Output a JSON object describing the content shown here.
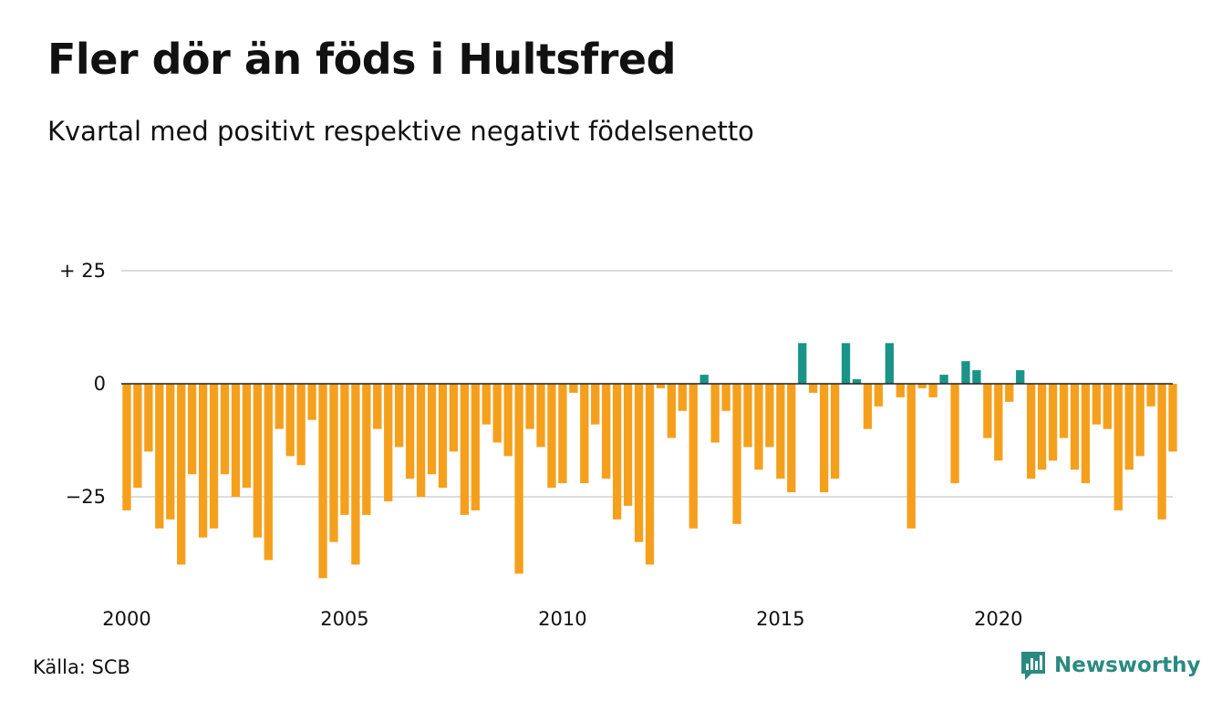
{
  "title": "Fler dör än föds i Hultsfred",
  "subtitle": "Kvartal med positivt respektive negativt födelsenetto",
  "source": "Källa: SCB",
  "brand": "Newsworthy",
  "colors": {
    "positive": "#1a9488",
    "negative": "#f5a01c",
    "grid": "#dddddd",
    "zero_line": "#222222",
    "brand": "#2a8a80"
  },
  "chart_data": {
    "type": "bar",
    "title": "Fler dör än föds i Hultsfred",
    "subtitle": "Kvartal med positivt respektive negativt födelsenetto",
    "x_start": 2000,
    "periods_per_year": 4,
    "ylim": [
      -45,
      32
    ],
    "y_ticks": [
      {
        "value": 25,
        "label": "+ 25"
      },
      {
        "value": 0,
        "label": "0"
      },
      {
        "value": -25,
        "label": "−25"
      }
    ],
    "x_ticks": [
      {
        "value": 2000,
        "label": "2000"
      },
      {
        "value": 2005,
        "label": "2005"
      },
      {
        "value": 2010,
        "label": "2010"
      },
      {
        "value": 2015,
        "label": "2015"
      },
      {
        "value": 2020,
        "label": "2020"
      }
    ],
    "grid": true,
    "values": [
      -28,
      -23,
      -15,
      -32,
      -30,
      -40,
      -20,
      -34,
      -32,
      -20,
      -25,
      -23,
      -34,
      -39,
      -10,
      -16,
      -18,
      -8,
      -43,
      -35,
      -29,
      -40,
      -29,
      -10,
      -26,
      -14,
      -21,
      -25,
      -20,
      -23,
      -15,
      -29,
      -28,
      -9,
      -13,
      -16,
      -42,
      -10,
      -14,
      -23,
      -22,
      -2,
      -22,
      -9,
      -21,
      -30,
      -27,
      -35,
      -40,
      -1,
      -12,
      -6,
      -32,
      2,
      -13,
      -6,
      -31,
      -14,
      -19,
      -14,
      -21,
      -24,
      9,
      -2,
      -24,
      -21,
      9,
      1,
      -10,
      -5,
      9,
      -3,
      -32,
      -1,
      -3,
      2,
      -22,
      5,
      3,
      -12,
      -17,
      -4,
      3,
      -21,
      -19,
      -17,
      -12,
      -19,
      -22,
      -9,
      -10,
      -28,
      -19,
      -16,
      -5,
      -30,
      -15
    ]
  }
}
